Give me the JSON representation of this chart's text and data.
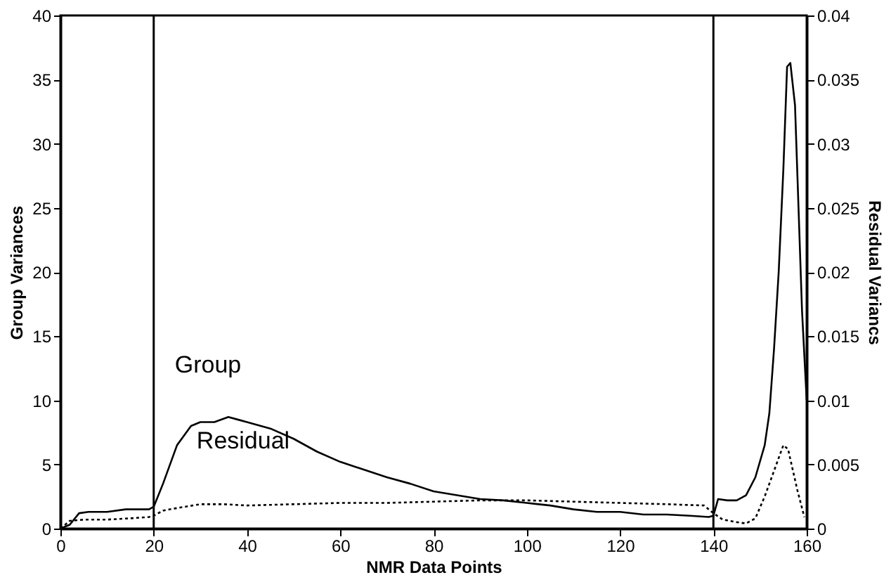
{
  "chart_data": {
    "type": "line",
    "xlabel": "NMR Data Points",
    "ylabel": "Group Variances",
    "y2label": "Residual Variancs",
    "xlim": [
      0,
      160
    ],
    "xticks": [
      0,
      20,
      40,
      60,
      80,
      100,
      120,
      140,
      160
    ],
    "ylim": [
      0,
      40
    ],
    "yticks": [
      0,
      5,
      10,
      15,
      20,
      25,
      30,
      35,
      40
    ],
    "y2lim": [
      0,
      0.04
    ],
    "y2ticks": [
      0,
      0.005,
      0.01,
      0.015,
      0.02,
      0.025,
      0.03,
      0.035,
      0.04
    ],
    "grid": false,
    "marker": "none",
    "series": [
      {
        "color": "#000000",
        "line_style": "solid",
        "x": [
          0,
          2,
          4,
          6,
          10,
          14,
          19,
          20,
          22,
          25,
          28,
          30,
          33,
          36,
          38,
          40,
          45,
          50,
          55,
          60,
          65,
          70,
          75,
          80,
          85,
          90,
          95,
          100,
          105,
          110,
          115,
          120,
          125,
          130,
          135,
          139,
          140,
          141,
          143,
          145,
          147,
          149,
          151,
          152,
          153,
          154,
          155,
          155.8,
          156.5,
          157.5,
          159,
          160
        ],
        "values": [
          0,
          0.3,
          1.2,
          1.3,
          1.3,
          1.5,
          1.5,
          1.7,
          3.5,
          6.5,
          8.0,
          8.3,
          8.3,
          8.7,
          8.5,
          8.3,
          7.8,
          7.0,
          6.0,
          5.2,
          4.6,
          4.0,
          3.5,
          2.9,
          2.6,
          2.3,
          2.2,
          2.0,
          1.8,
          1.5,
          1.3,
          1.3,
          1.1,
          1.1,
          1.0,
          0.9,
          1.0,
          2.3,
          2.2,
          2.2,
          2.6,
          4,
          6.5,
          9,
          14,
          20,
          28,
          36,
          36.3,
          33,
          17,
          10
        ]
      },
      {
        "color": "#000000",
        "line_style": "dotted",
        "axis": "y2",
        "x": [
          0,
          2,
          5,
          10,
          15,
          19,
          20,
          22,
          25,
          30,
          35,
          40,
          50,
          60,
          70,
          80,
          90,
          100,
          110,
          120,
          130,
          138,
          140,
          142,
          145,
          147,
          149,
          151,
          153,
          155,
          156,
          158,
          159.5
        ],
        "values": [
          0,
          0.0006,
          0.0007,
          0.0007,
          0.0008,
          0.0009,
          0.001,
          0.0014,
          0.0016,
          0.0019,
          0.0019,
          0.0018,
          0.0019,
          0.002,
          0.002,
          0.0021,
          0.0022,
          0.0022,
          0.0021,
          0.002,
          0.0019,
          0.0018,
          0.0012,
          0.0007,
          0.0005,
          0.0004,
          0.0008,
          0.0025,
          0.0045,
          0.0065,
          0.0062,
          0.003,
          0.0009
        ]
      }
    ],
    "ref_lines": [
      {
        "axis": "x",
        "value": 20,
        "line_style": "solid",
        "color": "#000000"
      },
      {
        "axis": "x",
        "value": 140,
        "line_style": "solid",
        "color": "#000000"
      }
    ],
    "annotations": [
      "Group",
      "Residual"
    ]
  }
}
